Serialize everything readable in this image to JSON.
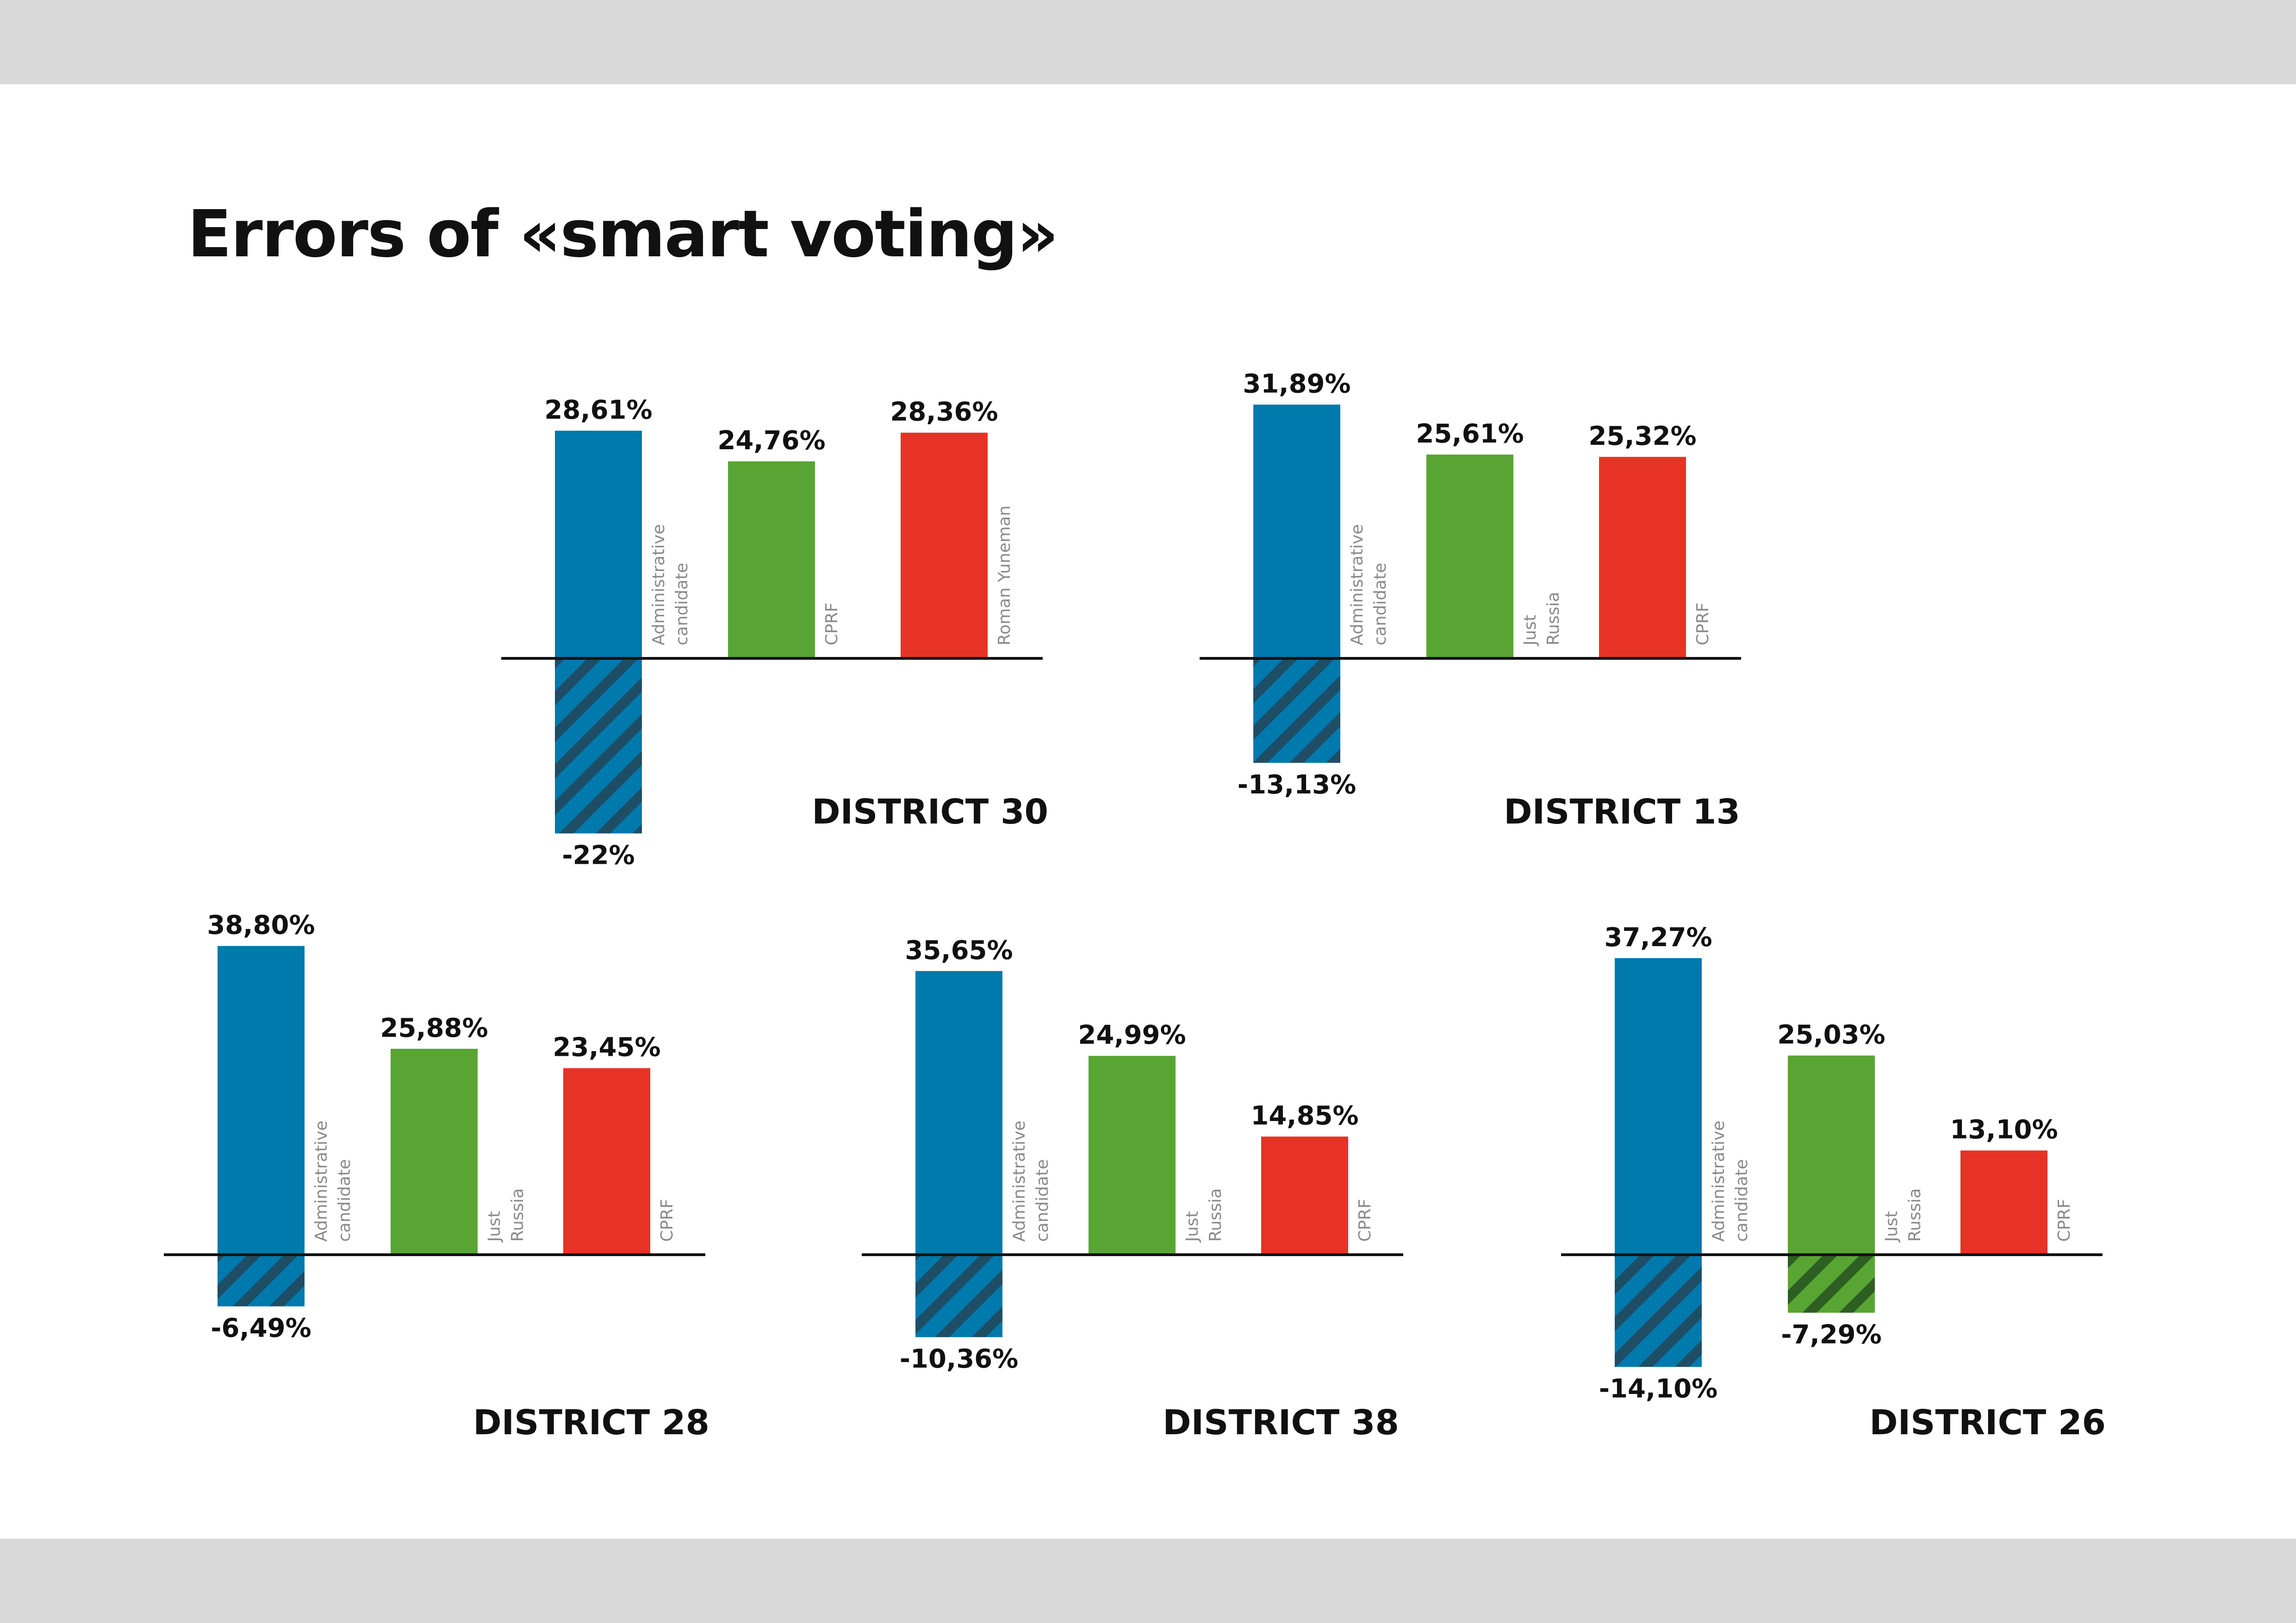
{
  "title": "Errors of «smart voting»",
  "colors": {
    "blue": "#0079ad",
    "green": "#58a534",
    "red": "#e63325",
    "hatch_stripe": "#1e4e66",
    "green_hatch_stripe": "#2d5e22",
    "axis": "#111111",
    "band": "#d9d9d9"
  },
  "chart_data": [
    {
      "type": "bar",
      "title": "DISTRICT 30",
      "categories": [
        "Administrative candidate",
        "CPRF",
        "Roman Yuneman"
      ],
      "series": [
        {
          "values": [
            28.61,
            24.76,
            28.36
          ],
          "labels": [
            "28,61%",
            "24,76%",
            "28,36%"
          ],
          "colors": [
            "blue",
            "green",
            "red"
          ]
        }
      ],
      "negatives": [
        {
          "index": 0,
          "value": -22,
          "label": "-22%",
          "color": "blue"
        }
      ]
    },
    {
      "type": "bar",
      "title": "DISTRICT 13",
      "categories": [
        "Administrative candidate",
        "Just Russia",
        "CPRF"
      ],
      "series": [
        {
          "values": [
            31.89,
            25.61,
            25.32
          ],
          "labels": [
            "31,89%",
            "25,61%",
            "25,32%"
          ],
          "colors": [
            "blue",
            "green",
            "red"
          ]
        }
      ],
      "negatives": [
        {
          "index": 0,
          "value": -13.13,
          "label": "-13,13%",
          "color": "blue"
        }
      ]
    },
    {
      "type": "bar",
      "title": "DISTRICT 28",
      "categories": [
        "Administrative candidate",
        "Just Russia",
        "CPRF"
      ],
      "series": [
        {
          "values": [
            38.8,
            25.88,
            23.45
          ],
          "labels": [
            "38,80%",
            "25,88%",
            "23,45%"
          ],
          "colors": [
            "blue",
            "green",
            "red"
          ]
        }
      ],
      "negatives": [
        {
          "index": 0,
          "value": -6.49,
          "label": "-6,49%",
          "color": "blue"
        }
      ]
    },
    {
      "type": "bar",
      "title": "DISTRICT 38",
      "categories": [
        "Administrative candidate",
        "Just Russia",
        "CPRF"
      ],
      "series": [
        {
          "values": [
            35.65,
            24.99,
            14.85
          ],
          "labels": [
            "35,65%",
            "24,99%",
            "14,85%"
          ],
          "colors": [
            "blue",
            "green",
            "red"
          ]
        }
      ],
      "negatives": [
        {
          "index": 0,
          "value": -10.36,
          "label": "-10,36%",
          "color": "blue"
        }
      ]
    },
    {
      "type": "bar",
      "title": "DISTRICT 26",
      "categories": [
        "Administrative candidate",
        "Just Russia",
        "CPRF"
      ],
      "series": [
        {
          "values": [
            37.27,
            25.03,
            13.1
          ],
          "labels": [
            "37,27%",
            "25,03%",
            "13,10%"
          ],
          "colors": [
            "blue",
            "green",
            "red"
          ]
        }
      ],
      "negatives": [
        {
          "index": 0,
          "value": -14.1,
          "label": "-14,10%",
          "color": "blue"
        },
        {
          "index": 1,
          "value": -7.29,
          "label": "-7,29%",
          "color": "green"
        }
      ]
    }
  ]
}
